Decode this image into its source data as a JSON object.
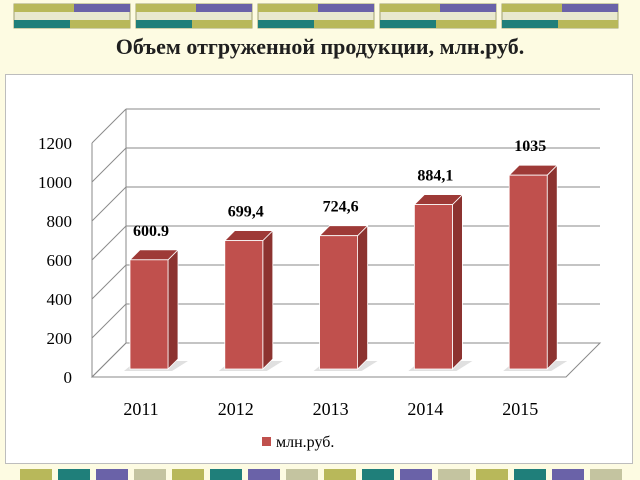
{
  "title": "Объем отгруженной продукции, млн.руб.",
  "chart_data": {
    "type": "bar",
    "categories": [
      "2011",
      "2012",
      "2013",
      "2014",
      "2015"
    ],
    "series": [
      {
        "name": "млн.руб.",
        "values": [
          600.9,
          699.4,
          724.6,
          884.1,
          1035
        ]
      }
    ],
    "data_labels": [
      "600.9",
      "699,4",
      "724,6",
      "884,1",
      "1035"
    ],
    "y_ticks": [
      "0",
      "200",
      "400",
      "600",
      "800",
      "1000",
      "1200"
    ],
    "ylim": [
      0,
      1200
    ],
    "grid": true,
    "three_d": true,
    "legend_position": "bottom",
    "colors": {
      "bar_front": "#c0504d",
      "bar_side": "#8c3330",
      "bar_top": "#9e3a37"
    }
  },
  "decor": {
    "colors": [
      "#b8b85a",
      "#1f7f7a",
      "#6a62a8",
      "#c4c4a0"
    ]
  }
}
